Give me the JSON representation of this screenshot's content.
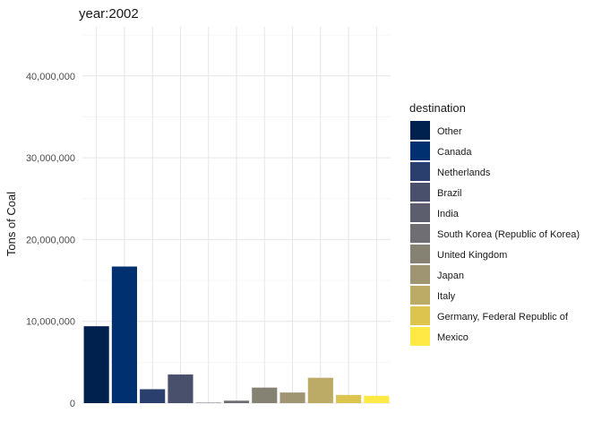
{
  "chart_data": {
    "type": "bar",
    "title": "year:2002",
    "xlabel": "",
    "ylabel": "Tons of Coal",
    "ylim": [
      0,
      46000000
    ],
    "yticks": [
      0,
      10000000,
      20000000,
      30000000,
      40000000
    ],
    "ytick_labels": [
      "0",
      "10,000,000",
      "20,000,000",
      "30,000,000",
      "40,000,000"
    ],
    "legend_title": "destination",
    "legend_position": "right",
    "categories": [
      "Other",
      "Canada",
      "Netherlands",
      "Brazil",
      "India",
      "South Korea (Republic of Korea)",
      "United Kingdom",
      "Japan",
      "Italy",
      "Germany, Federal Republic of",
      "Mexico"
    ],
    "values": [
      9400000,
      16700000,
      1700000,
      3500000,
      50000,
      300000,
      1900000,
      1300000,
      3100000,
      1000000,
      900000
    ],
    "colors": [
      "#00204d",
      "#00306f",
      "#2a3f6d",
      "#48506c",
      "#5c5e6d",
      "#6f6e72",
      "#858173",
      "#a09573",
      "#bcab66",
      "#dcc44f",
      "#ffe945"
    ]
  }
}
